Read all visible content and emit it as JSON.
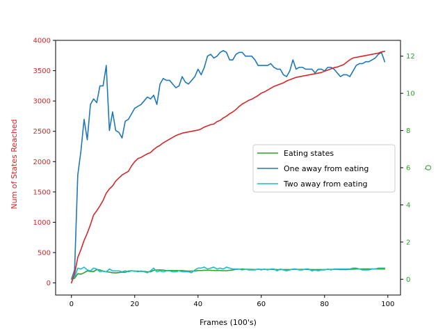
{
  "chart_data": {
    "type": "line",
    "xlabel": "Frames (100's)",
    "ylabel_left": "Num of States Reached",
    "ylabel_right": "Q",
    "xlim": [
      -5,
      104
    ],
    "ylim_left": [
      -200,
      4000
    ],
    "ylim_right": [
      -0.85,
      12.85
    ],
    "xticks": [
      0,
      20,
      40,
      60,
      80,
      100
    ],
    "yticks_left": [
      0,
      500,
      1000,
      1500,
      2000,
      2500,
      3000,
      3500,
      4000
    ],
    "yticks_right": [
      0,
      2,
      4,
      6,
      8,
      10,
      12
    ],
    "left_axis_color": "#d62728",
    "right_axis_color": "#2ca02c",
    "legend_position": "center-right",
    "grid": false,
    "states_reached": {
      "color": "#d62728",
      "axis": "left",
      "x": [
        0,
        1,
        2,
        3,
        4,
        5,
        6,
        7,
        8,
        9,
        10,
        11,
        12,
        13,
        14,
        15,
        16,
        17,
        18,
        19,
        20,
        21,
        22,
        23,
        24,
        25,
        26,
        27,
        28,
        29,
        30,
        31,
        32,
        33,
        34,
        35,
        36,
        37,
        38,
        39,
        40,
        41,
        42,
        43,
        44,
        45,
        46,
        47,
        48,
        49,
        50,
        51,
        52,
        53,
        54,
        55,
        56,
        57,
        58,
        59,
        60,
        61,
        62,
        63,
        64,
        65,
        66,
        67,
        68,
        69,
        70,
        71,
        72,
        73,
        74,
        75,
        76,
        77,
        78,
        79,
        80,
        81,
        82,
        83,
        84,
        85,
        86,
        87,
        88,
        89,
        90,
        91,
        92,
        93,
        94,
        95,
        96,
        97,
        98,
        99
      ],
      "values": [
        0,
        150,
        420,
        550,
        700,
        820,
        960,
        1120,
        1190,
        1270,
        1360,
        1480,
        1550,
        1600,
        1680,
        1730,
        1780,
        1810,
        1840,
        1930,
        2000,
        2050,
        2070,
        2100,
        2130,
        2150,
        2200,
        2240,
        2270,
        2310,
        2340,
        2370,
        2400,
        2430,
        2450,
        2470,
        2480,
        2490,
        2500,
        2510,
        2520,
        2540,
        2570,
        2590,
        2610,
        2620,
        2660,
        2680,
        2720,
        2750,
        2790,
        2820,
        2860,
        2910,
        2950,
        2980,
        3010,
        3030,
        3060,
        3090,
        3130,
        3150,
        3180,
        3210,
        3240,
        3260,
        3280,
        3300,
        3330,
        3350,
        3370,
        3390,
        3400,
        3410,
        3420,
        3430,
        3440,
        3450,
        3460,
        3470,
        3490,
        3510,
        3530,
        3550,
        3560,
        3580,
        3600,
        3640,
        3680,
        3710,
        3720,
        3730,
        3740,
        3750,
        3760,
        3770,
        3780,
        3790,
        3810,
        3820
      ]
    },
    "series": [
      {
        "name": "Eating states",
        "color": "#2ca02c",
        "axis": "right",
        "x": [
          0,
          1,
          2,
          3,
          4,
          5,
          6,
          7,
          8,
          9,
          10,
          11,
          12,
          13,
          14,
          15,
          16,
          17,
          18,
          19,
          20,
          21,
          22,
          23,
          24,
          25,
          26,
          27,
          28,
          29,
          30,
          31,
          32,
          33,
          34,
          35,
          36,
          37,
          38,
          39,
          40,
          41,
          42,
          43,
          44,
          45,
          46,
          47,
          48,
          49,
          50,
          51,
          52,
          53,
          54,
          55,
          56,
          57,
          58,
          59,
          60,
          61,
          62,
          63,
          64,
          65,
          66,
          67,
          68,
          69,
          70,
          71,
          72,
          73,
          74,
          75,
          76,
          77,
          78,
          79,
          80,
          81,
          82,
          83,
          84,
          85,
          86,
          87,
          88,
          89,
          90,
          91,
          92,
          93,
          94,
          95,
          96,
          97,
          98,
          99
        ],
        "values": [
          0.0,
          0.05,
          0.3,
          0.27,
          0.35,
          0.45,
          0.42,
          0.41,
          0.52,
          0.5,
          0.43,
          0.4,
          0.38,
          0.35,
          0.34,
          0.36,
          0.38,
          0.37,
          0.44,
          0.46,
          0.43,
          0.44,
          0.42,
          0.42,
          0.4,
          0.4,
          0.48,
          0.5,
          0.5,
          0.49,
          0.47,
          0.47,
          0.47,
          0.47,
          0.46,
          0.47,
          0.45,
          0.44,
          0.44,
          0.44,
          0.47,
          0.47,
          0.48,
          0.48,
          0.48,
          0.47,
          0.47,
          0.47,
          0.46,
          0.46,
          0.48,
          0.5,
          0.53,
          0.54,
          0.55,
          0.54,
          0.53,
          0.53,
          0.52,
          0.54,
          0.53,
          0.53,
          0.53,
          0.53,
          0.52,
          0.52,
          0.52,
          0.52,
          0.52,
          0.52,
          0.53,
          0.53,
          0.53,
          0.53,
          0.53,
          0.52,
          0.52,
          0.52,
          0.52,
          0.52,
          0.52,
          0.53,
          0.53,
          0.53,
          0.53,
          0.52,
          0.52,
          0.52,
          0.53,
          0.54,
          0.55,
          0.55,
          0.55,
          0.55,
          0.55,
          0.55,
          0.55,
          0.55,
          0.55,
          0.55
        ]
      },
      {
        "name": "One away from eating",
        "color": "#1f77b4",
        "axis": "right",
        "x": [
          0,
          1,
          2,
          3,
          4,
          5,
          6,
          7,
          8,
          9,
          10,
          11,
          12,
          13,
          14,
          15,
          16,
          17,
          18,
          19,
          20,
          21,
          22,
          23,
          24,
          25,
          26,
          27,
          28,
          29,
          30,
          31,
          32,
          33,
          34,
          35,
          36,
          37,
          38,
          39,
          40,
          41,
          42,
          43,
          44,
          45,
          46,
          47,
          48,
          49,
          50,
          51,
          52,
          53,
          54,
          55,
          56,
          57,
          58,
          59,
          60,
          61,
          62,
          63,
          64,
          65,
          66,
          67,
          68,
          69,
          70,
          71,
          72,
          73,
          74,
          75,
          76,
          77,
          78,
          79,
          80,
          81,
          82,
          83,
          84,
          85,
          86,
          87,
          88,
          89,
          90,
          91,
          92,
          93,
          94,
          95,
          96,
          97,
          98,
          99
        ],
        "values": [
          0.0,
          0.5,
          5.6,
          6.9,
          8.6,
          7.5,
          9.4,
          9.7,
          9.5,
          10.4,
          10.4,
          11.5,
          8.0,
          9.0,
          8.0,
          7.9,
          7.6,
          8.5,
          8.6,
          8.9,
          9.2,
          9.3,
          9.4,
          9.6,
          9.8,
          9.7,
          9.9,
          9.4,
          10.5,
          10.8,
          10.7,
          10.7,
          10.5,
          10.3,
          10.4,
          10.9,
          10.6,
          10.5,
          10.7,
          10.9,
          11.3,
          11.0,
          11.4,
          12.0,
          12.1,
          11.9,
          12.0,
          12.2,
          12.3,
          12.2,
          11.8,
          11.8,
          12.1,
          12.2,
          12.2,
          12.0,
          12.0,
          12.0,
          11.8,
          11.5,
          11.5,
          11.5,
          11.5,
          11.6,
          11.4,
          11.3,
          11.3,
          11.0,
          10.9,
          11.2,
          11.8,
          11.3,
          11.4,
          11.4,
          11.3,
          11.3,
          11.3,
          11.1,
          11.3,
          11.3,
          11.2,
          11.4,
          11.4,
          11.3,
          11.1,
          10.9,
          11.0,
          11.0,
          10.9,
          11.2,
          11.5,
          11.6,
          11.6,
          11.7,
          11.7,
          11.8,
          11.9,
          12.1,
          12.2,
          11.7
        ]
      },
      {
        "name": "Two away from eating",
        "color": "#17becf",
        "axis": "right",
        "x": [
          0,
          1,
          2,
          3,
          4,
          5,
          6,
          7,
          8,
          9,
          10,
          11,
          12,
          13,
          14,
          15,
          16,
          17,
          18,
          19,
          20,
          21,
          22,
          23,
          24,
          25,
          26,
          27,
          28,
          29,
          30,
          31,
          32,
          33,
          34,
          35,
          36,
          37,
          38,
          39,
          40,
          41,
          42,
          43,
          44,
          45,
          46,
          47,
          48,
          49,
          50,
          51,
          52,
          53,
          54,
          55,
          56,
          57,
          58,
          59,
          60,
          61,
          62,
          63,
          64,
          65,
          66,
          67,
          68,
          69,
          70,
          71,
          72,
          73,
          74,
          75,
          76,
          77,
          78,
          79,
          80,
          81,
          82,
          83,
          84,
          85,
          86,
          87,
          88,
          89,
          90,
          91,
          92,
          93,
          94,
          95,
          96,
          97,
          98,
          99
        ],
        "values": [
          0.0,
          0.1,
          0.6,
          0.55,
          0.65,
          0.5,
          0.45,
          0.6,
          0.55,
          0.4,
          0.45,
          0.4,
          0.55,
          0.45,
          0.45,
          0.45,
          0.4,
          0.45,
          0.4,
          0.45,
          0.45,
          0.4,
          0.45,
          0.4,
          0.35,
          0.45,
          0.6,
          0.4,
          0.45,
          0.4,
          0.45,
          0.45,
          0.4,
          0.4,
          0.45,
          0.4,
          0.4,
          0.4,
          0.35,
          0.5,
          0.6,
          0.6,
          0.65,
          0.55,
          0.6,
          0.65,
          0.55,
          0.6,
          0.55,
          0.65,
          0.6,
          0.55,
          0.55,
          0.55,
          0.5,
          0.55,
          0.5,
          0.5,
          0.5,
          0.55,
          0.5,
          0.55,
          0.5,
          0.55,
          0.55,
          0.45,
          0.55,
          0.5,
          0.45,
          0.5,
          0.55,
          0.55,
          0.5,
          0.5,
          0.55,
          0.55,
          0.45,
          0.5,
          0.45,
          0.5,
          0.5,
          0.55,
          0.5,
          0.55,
          0.55,
          0.55,
          0.55,
          0.55,
          0.55,
          0.6,
          0.6,
          0.55,
          0.5,
          0.5,
          0.5,
          0.55,
          0.55,
          0.6,
          0.6,
          0.6
        ]
      }
    ]
  }
}
